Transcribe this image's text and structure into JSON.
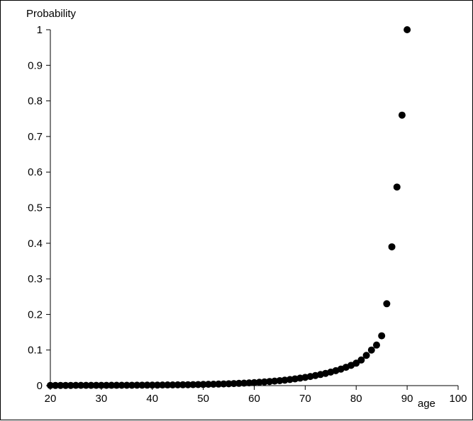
{
  "chart_data": {
    "type": "scatter",
    "xlabel": "age",
    "ylabel": "Probability",
    "xlim": [
      20,
      100
    ],
    "ylim": [
      0,
      1
    ],
    "xticks": [
      20,
      30,
      40,
      50,
      60,
      70,
      80,
      90,
      100
    ],
    "yticks": [
      0,
      0.1,
      0.2,
      0.3,
      0.4,
      0.5,
      0.6,
      0.7,
      0.8,
      0.9,
      1
    ],
    "xtick_labels": [
      "20",
      "30",
      "40",
      "50",
      "60",
      "70",
      "80",
      "90",
      "100"
    ],
    "ytick_labels": [
      "0",
      "0.1",
      "0.2",
      "0.3",
      "0.4",
      "0.5",
      "0.6",
      "0.7",
      "0.8",
      "0.9",
      "1"
    ],
    "grid": false,
    "marker_color": "#000000",
    "series": [
      {
        "points": [
          [
            20,
            0.0006
          ],
          [
            21,
            0.0006
          ],
          [
            22,
            0.0006
          ],
          [
            23,
            0.0006
          ],
          [
            24,
            0.0006
          ],
          [
            25,
            0.0007
          ],
          [
            26,
            0.0007
          ],
          [
            27,
            0.0007
          ],
          [
            28,
            0.0007
          ],
          [
            29,
            0.0008
          ],
          [
            30,
            0.0008
          ],
          [
            31,
            0.0008
          ],
          [
            32,
            0.0009
          ],
          [
            33,
            0.0009
          ],
          [
            34,
            0.001
          ],
          [
            35,
            0.001
          ],
          [
            36,
            0.0011
          ],
          [
            37,
            0.0012
          ],
          [
            38,
            0.0013
          ],
          [
            39,
            0.0014
          ],
          [
            40,
            0.0015
          ],
          [
            41,
            0.0016
          ],
          [
            42,
            0.0017
          ],
          [
            43,
            0.0019
          ],
          [
            44,
            0.002
          ],
          [
            45,
            0.0022
          ],
          [
            46,
            0.0024
          ],
          [
            47,
            0.0026
          ],
          [
            48,
            0.0028
          ],
          [
            49,
            0.0031
          ],
          [
            50,
            0.0034
          ],
          [
            51,
            0.0037
          ],
          [
            52,
            0.004
          ],
          [
            53,
            0.0044
          ],
          [
            54,
            0.0048
          ],
          [
            55,
            0.0053
          ],
          [
            56,
            0.0058
          ],
          [
            57,
            0.0064
          ],
          [
            58,
            0.007
          ],
          [
            59,
            0.0077
          ],
          [
            60,
            0.0085
          ],
          [
            61,
            0.0094
          ],
          [
            62,
            0.0104
          ],
          [
            63,
            0.0115
          ],
          [
            64,
            0.0127
          ],
          [
            65,
            0.014
          ],
          [
            66,
            0.0155
          ],
          [
            67,
            0.0172
          ],
          [
            68,
            0.019
          ],
          [
            69,
            0.021
          ],
          [
            70,
            0.0232
          ],
          [
            71,
            0.0256
          ],
          [
            72,
            0.0283
          ],
          [
            73,
            0.0312
          ],
          [
            74,
            0.0344
          ],
          [
            75,
            0.038
          ],
          [
            76,
            0.042
          ],
          [
            77,
            0.0464
          ],
          [
            78,
            0.0515
          ],
          [
            79,
            0.057
          ],
          [
            80,
            0.063
          ],
          [
            81,
            0.072
          ],
          [
            82,
            0.085
          ],
          [
            83,
            0.1
          ],
          [
            84,
            0.114
          ],
          [
            85,
            0.14
          ],
          [
            86,
            0.23
          ],
          [
            87,
            0.39
          ],
          [
            88,
            0.558
          ],
          [
            89,
            0.76
          ],
          [
            90,
            1.0
          ]
        ]
      }
    ]
  }
}
